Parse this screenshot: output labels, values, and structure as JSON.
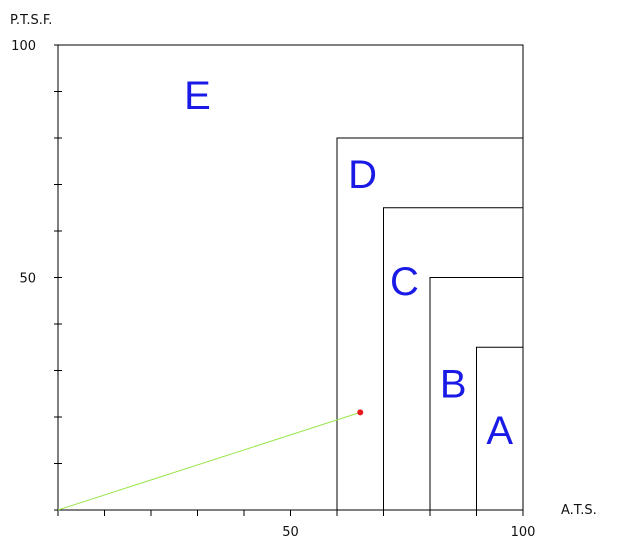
{
  "chart_data": {
    "type": "scatter",
    "xlabel": "A.T.S.",
    "ylabel": "P.T.S.F.",
    "xlim": [
      0,
      100
    ],
    "ylim": [
      0,
      100
    ],
    "x_ticks": [
      0,
      10,
      20,
      30,
      40,
      50,
      60,
      70,
      80,
      90,
      100
    ],
    "y_ticks": [
      0,
      10,
      20,
      30,
      40,
      50,
      60,
      70,
      80,
      90,
      100
    ],
    "x_tick_labels": [
      {
        "value": 50,
        "label": "50"
      },
      {
        "value": 100,
        "label": "100"
      }
    ],
    "y_tick_labels": [
      {
        "value": 50,
        "label": "50"
      },
      {
        "value": 100,
        "label": "100"
      }
    ],
    "zones": [
      {
        "label": "A",
        "x_min": 90,
        "y_max": 35,
        "label_at": [
          95,
          17
        ]
      },
      {
        "label": "B",
        "x_min": 80,
        "y_max": 50,
        "label_at": [
          85,
          27
        ]
      },
      {
        "label": "C",
        "x_min": 70,
        "y_max": 65,
        "label_at": [
          74.5,
          49
        ]
      },
      {
        "label": "D",
        "x_min": 60,
        "y_max": 80,
        "label_at": [
          65.5,
          72
        ]
      },
      {
        "label": "E",
        "x_min": 0,
        "y_max": 100,
        "label_at": [
          30,
          89
        ]
      }
    ],
    "zone_color": "#1a1ae6",
    "point": {
      "x": 65,
      "y": 21,
      "color": "#e61a1a"
    },
    "guide_line": {
      "from": [
        0,
        0
      ],
      "to": [
        65,
        21
      ],
      "color": "#99e64d"
    },
    "grid": false
  }
}
